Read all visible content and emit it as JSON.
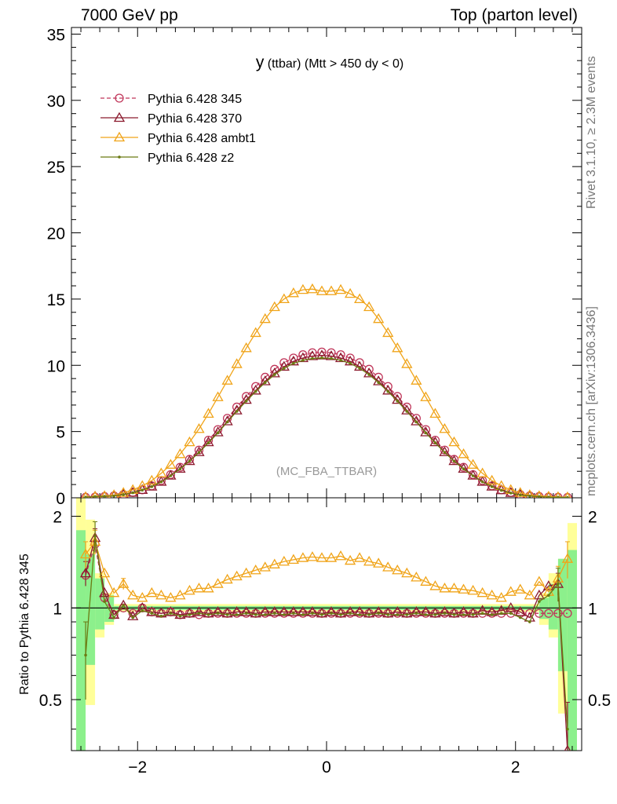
{
  "header": {
    "left": "7000 GeV pp",
    "right": "Top (parton level)"
  },
  "side_labels": {
    "top": "Rivet 3.1.10, ≥ 2.3M events",
    "bottom": "mcplots.cern.ch [arXiv:1306.3436]"
  },
  "chart_data": {
    "type": "line",
    "title": "y (ttbar) (Mtt > 450 dy < 0)",
    "title_main": "y",
    "title_rest": " (ttbar) (Mtt > 450 dy < 0)",
    "watermark": "(MC_FBA_TTBAR)",
    "xlim": [
      -2.7,
      2.7
    ],
    "x_ticks": [
      -2,
      0,
      2
    ],
    "x_tick_labels": [
      "−2",
      "0",
      "2"
    ],
    "main": {
      "ylim": [
        0,
        35.5
      ],
      "y_ticks": [
        0,
        5,
        10,
        15,
        20,
        25,
        30,
        35
      ],
      "y_tick_labels": [
        "0",
        "5",
        "10",
        "15",
        "20",
        "25",
        "30",
        "35"
      ]
    },
    "ratio": {
      "ylabel": "Ratio to Pythia 6.428 345",
      "scale": "log",
      "ylim": [
        0.34,
        2.3
      ],
      "y_ticks": [
        0.5,
        1,
        2
      ],
      "y_tick_labels": [
        "0.5",
        "1",
        "2"
      ],
      "band_x": [
        -2.6,
        -2.5,
        -2.4,
        -2.3
      ],
      "band_yellow": [
        [
          0.3,
          2.3
        ],
        [
          0.48,
          1.95
        ],
        [
          0.8,
          1.3
        ],
        [
          0.88,
          1.12
        ]
      ],
      "band_green": [
        [
          0.34,
          1.8
        ],
        [
          0.65,
          1.5
        ],
        [
          0.85,
          1.25
        ],
        [
          0.9,
          1.1
        ]
      ],
      "band_x_right": [
        2.3,
        2.4,
        2.5,
        2.6
      ],
      "band_yellow_right": [
        [
          0.88,
          1.12
        ],
        [
          0.8,
          1.3
        ],
        [
          0.45,
          1.45
        ],
        [
          0.3,
          1.9
        ]
      ],
      "band_green_right": [
        [
          0.92,
          1.08
        ],
        [
          0.85,
          1.2
        ],
        [
          0.62,
          1.45
        ],
        [
          0.34,
          1.55
        ]
      ]
    },
    "x": [
      -2.55,
      -2.45,
      -2.35,
      -2.25,
      -2.15,
      -2.05,
      -1.95,
      -1.85,
      -1.75,
      -1.65,
      -1.55,
      -1.45,
      -1.35,
      -1.25,
      -1.15,
      -1.05,
      -0.95,
      -0.85,
      -0.75,
      -0.65,
      -0.55,
      -0.45,
      -0.35,
      -0.25,
      -0.15,
      -0.05,
      0.05,
      0.15,
      0.25,
      0.35,
      0.45,
      0.55,
      0.65,
      0.75,
      0.85,
      0.95,
      1.05,
      1.15,
      1.25,
      1.35,
      1.45,
      1.55,
      1.65,
      1.75,
      1.85,
      1.95,
      2.05,
      2.15,
      2.25,
      2.35,
      2.45,
      2.55
    ],
    "series": [
      {
        "name": "Pythia 6.428 345",
        "color": "#c0365a",
        "dashed": true,
        "marker": "circle-open",
        "values": [
          0.04,
          0.06,
          0.1,
          0.15,
          0.25,
          0.4,
          0.6,
          0.9,
          1.3,
          1.75,
          2.3,
          2.9,
          3.6,
          4.35,
          5.15,
          6.0,
          6.85,
          7.65,
          8.4,
          9.1,
          9.7,
          10.2,
          10.55,
          10.8,
          10.95,
          11.0,
          10.95,
          10.8,
          10.55,
          10.2,
          9.7,
          9.1,
          8.4,
          7.65,
          6.85,
          6.0,
          5.15,
          4.35,
          3.6,
          2.9,
          2.3,
          1.75,
          1.3,
          0.9,
          0.6,
          0.4,
          0.25,
          0.15,
          0.1,
          0.06,
          0.04,
          0.03
        ],
        "ratio": [
          1.28,
          1.62,
          1.08,
          0.95,
          1.0,
          0.96,
          1.0,
          0.97,
          0.96,
          0.97,
          0.95,
          0.96,
          0.95,
          0.96,
          0.96,
          0.96,
          0.96,
          0.96,
          0.96,
          0.96,
          0.96,
          0.96,
          0.96,
          0.96,
          0.96,
          0.96,
          0.96,
          0.96,
          0.96,
          0.96,
          0.96,
          0.96,
          0.96,
          0.96,
          0.96,
          0.96,
          0.96,
          0.96,
          0.96,
          0.96,
          0.96,
          0.96,
          0.96,
          0.96,
          0.96,
          0.96,
          0.96,
          0.96,
          0.96,
          0.96,
          0.96,
          0.96
        ]
      },
      {
        "name": "Pythia 6.428 370",
        "color": "#8b1a2e",
        "dashed": false,
        "marker": "triangle-open",
        "values": [
          0.05,
          0.1,
          0.11,
          0.14,
          0.25,
          0.39,
          0.6,
          0.85,
          1.22,
          1.68,
          2.2,
          2.78,
          3.45,
          4.2,
          4.95,
          5.78,
          6.6,
          7.4,
          8.1,
          8.8,
          9.4,
          9.9,
          10.3,
          10.55,
          10.7,
          10.75,
          10.7,
          10.55,
          10.3,
          9.9,
          9.4,
          8.8,
          8.1,
          7.4,
          6.6,
          5.78,
          4.95,
          4.2,
          3.45,
          2.78,
          2.2,
          1.68,
          1.22,
          0.85,
          0.58,
          0.38,
          0.23,
          0.14,
          0.09,
          0.05,
          0.04,
          0.03
        ],
        "ratio": [
          1.3,
          1.7,
          1.12,
          0.95,
          1.02,
          0.94,
          1.0,
          0.97,
          0.96,
          0.97,
          0.95,
          0.96,
          0.97,
          0.96,
          0.97,
          0.96,
          0.97,
          0.97,
          0.96,
          0.97,
          0.97,
          0.97,
          0.97,
          0.97,
          0.97,
          0.96,
          0.97,
          0.96,
          0.97,
          0.97,
          0.96,
          0.97,
          0.96,
          0.97,
          0.96,
          0.97,
          0.97,
          0.96,
          0.97,
          0.96,
          0.97,
          0.96,
          0.98,
          0.97,
          0.98,
          1.0,
          0.97,
          0.93,
          1.1,
          1.18,
          1.2,
          0.34
        ],
        "errors": [
          [
            -2.55,
            0.12
          ],
          [
            -2.45,
            0.12
          ],
          [
            2.45,
            0.1
          ],
          [
            2.55,
            0.15
          ]
        ]
      },
      {
        "name": "Pythia 6.428 ambt1",
        "color": "#f0a419",
        "dashed": false,
        "marker": "triangle-open",
        "values": [
          0.06,
          0.1,
          0.14,
          0.21,
          0.38,
          0.6,
          0.9,
          1.3,
          1.85,
          2.5,
          3.3,
          4.2,
          5.2,
          6.35,
          7.6,
          8.85,
          10.1,
          11.3,
          12.45,
          13.5,
          14.4,
          15.0,
          15.45,
          15.7,
          15.75,
          15.6,
          15.6,
          15.7,
          15.4,
          15.0,
          14.4,
          13.5,
          12.45,
          11.3,
          10.1,
          8.85,
          7.6,
          6.35,
          5.2,
          4.2,
          3.3,
          2.5,
          1.85,
          1.3,
          0.9,
          0.6,
          0.38,
          0.21,
          0.14,
          0.1,
          0.06,
          0.04
        ],
        "ratio": [
          1.5,
          1.65,
          1.3,
          1.12,
          1.2,
          1.1,
          1.08,
          1.12,
          1.1,
          1.08,
          1.1,
          1.14,
          1.16,
          1.16,
          1.2,
          1.24,
          1.27,
          1.3,
          1.33,
          1.36,
          1.39,
          1.42,
          1.44,
          1.46,
          1.47,
          1.46,
          1.46,
          1.48,
          1.43,
          1.46,
          1.42,
          1.4,
          1.36,
          1.33,
          1.3,
          1.26,
          1.22,
          1.18,
          1.16,
          1.16,
          1.15,
          1.14,
          1.12,
          1.1,
          1.08,
          1.13,
          1.15,
          1.1,
          1.22,
          1.13,
          1.25,
          1.45
        ],
        "errors": [
          [
            -2.55,
            0.15
          ],
          [
            -2.45,
            0.15
          ],
          [
            -2.15,
            0.05
          ],
          [
            2.45,
            0.12
          ],
          [
            2.55,
            0.2
          ]
        ]
      },
      {
        "name": "Pythia 6.428 z2",
        "color": "#6b7a12",
        "dashed": false,
        "marker": "dot",
        "values": [
          0.05,
          0.09,
          0.11,
          0.14,
          0.24,
          0.38,
          0.58,
          0.84,
          1.2,
          1.66,
          2.18,
          2.76,
          3.42,
          4.15,
          4.9,
          5.72,
          6.52,
          7.3,
          8.02,
          8.7,
          9.3,
          9.78,
          10.15,
          10.38,
          10.52,
          10.56,
          10.52,
          10.38,
          10.15,
          9.78,
          9.3,
          8.7,
          8.02,
          7.3,
          6.52,
          5.72,
          4.9,
          4.15,
          3.42,
          2.76,
          2.18,
          1.66,
          1.2,
          0.84,
          0.56,
          0.36,
          0.22,
          0.13,
          0.09,
          0.05,
          0.04,
          0.03
        ],
        "ratio": [
          0.7,
          1.72,
          1.05,
          0.93,
          1.02,
          0.93,
          0.98,
          0.96,
          0.94,
          0.96,
          0.94,
          0.95,
          0.96,
          0.95,
          0.96,
          0.95,
          0.95,
          0.96,
          0.95,
          0.95,
          0.96,
          0.95,
          0.96,
          0.95,
          0.96,
          0.95,
          0.96,
          0.95,
          0.96,
          0.95,
          0.95,
          0.96,
          0.95,
          0.95,
          0.95,
          0.96,
          0.95,
          0.95,
          0.96,
          0.95,
          0.95,
          0.95,
          0.96,
          0.95,
          0.96,
          0.96,
          0.93,
          0.9,
          1.05,
          1.1,
          1.2,
          0.4
        ],
        "errors": [
          [
            -2.55,
            0.2
          ],
          [
            -2.45,
            0.2
          ],
          [
            2.45,
            0.15
          ]
        ]
      }
    ]
  }
}
